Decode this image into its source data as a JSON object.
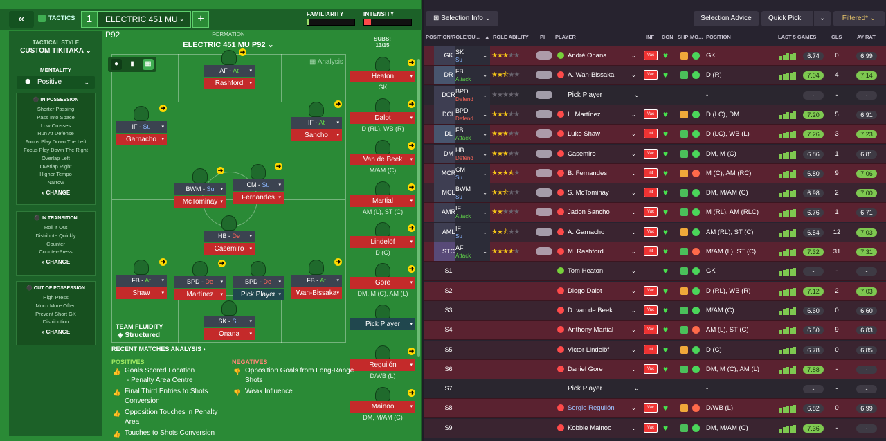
{
  "topbar": {
    "tactics_label": "TACTICS",
    "number": "1",
    "tactic_name": "ELECTRIC 451 MU P92",
    "familiarity_label": "FAMILIARITY",
    "intensity_label": "INTENSITY",
    "familiarity_value": 0.05,
    "intensity_value": 0.15
  },
  "side": {
    "style_label": "TACTICAL STYLE",
    "style_value": "CUSTOM TIKITAKA",
    "mentality_label": "MENTALITY",
    "mentality_value": "Positive",
    "in_possession": {
      "title": "IN POSSESSION",
      "items": [
        "Shorter Passing",
        "Pass Into Space",
        "Low Crosses",
        "Run At Defense",
        "Focus Play Down The Left",
        "Focus Play Down The Right",
        "Overlap Left",
        "Overlap Right",
        "Higher Tempo",
        "Narrow"
      ],
      "change": "CHANGE"
    },
    "in_transition": {
      "title": "IN TRANSITION",
      "items": [
        "Roll It Out",
        "Distribute Quickly",
        "Counter",
        "Counter-Press"
      ],
      "change": "CHANGE"
    },
    "out_of_possession": {
      "title": "OUT OF POSSESSION",
      "items": [
        "High Press",
        "Much More Often",
        "Prevent Short GK",
        "Distribution"
      ],
      "change": "CHANGE"
    }
  },
  "formation": {
    "label": "FORMATION",
    "name": "ELECTRIC 451 MU P92",
    "analysis": "Analysis",
    "subs_label": "SUBS:",
    "subs_count": "13/15"
  },
  "players": {
    "af": {
      "role": "AF -",
      "duty": "At",
      "name": "Rashford"
    },
    "if_l": {
      "role": "IF -",
      "duty": "Su",
      "name": "Garnacho"
    },
    "if_r": {
      "role": "IF -",
      "duty": "At",
      "name": "Sancho"
    },
    "bwm": {
      "role": "BWM -",
      "duty": "Su",
      "name": "McTominay"
    },
    "cm": {
      "role": "CM -",
      "duty": "Su",
      "name": "Fernandes"
    },
    "hb": {
      "role": "HB -",
      "duty": "De",
      "name": "Casemiro"
    },
    "fb_l": {
      "role": "FB -",
      "duty": "At",
      "name": "Shaw"
    },
    "bpd_l": {
      "role": "BPD -",
      "duty": "De",
      "name": "Martínez"
    },
    "bpd_r": {
      "role": "BPD -",
      "duty": "De",
      "name": "Pick Player"
    },
    "fb_r": {
      "role": "FB -",
      "duty": "At",
      "name": "Wan-Bissaka"
    },
    "sk": {
      "role": "SK -",
      "duty": "Su",
      "name": "Onana"
    }
  },
  "team_fluidity": {
    "label": "TEAM FLUIDITY",
    "value": "Structured"
  },
  "subs": [
    {
      "name": "Heaton",
      "pos": "GK"
    },
    {
      "name": "Dalot",
      "pos": "D (RL), WB (R)"
    },
    {
      "name": "Van de Beek",
      "pos": "M/AM (C)"
    },
    {
      "name": "Martial",
      "pos": "AM (L), ST (C)"
    },
    {
      "name": "Lindelöf",
      "pos": "D (C)"
    },
    {
      "name": "Gore",
      "pos": "DM, M (C), AM (L)"
    },
    {
      "name": "Pick Player",
      "pos": ""
    },
    {
      "name": "Reguilón",
      "pos": "D/WB (L)"
    },
    {
      "name": "Mainoo",
      "pos": "DM, M/AM (C)"
    }
  ],
  "analysis": {
    "title": "RECENT MATCHES ANALYSIS ›",
    "positives_label": "POSITIVES",
    "negatives_label": "NEGATIVES",
    "positives": [
      "Goals Scored Location",
      "- Penalty Area Centre",
      "Final Third Entries to Shots",
      "Conversion",
      "Opposition Touches in Penalty",
      "Area",
      "Touches to Shots Conversion"
    ],
    "negatives": [
      "Opposition Goals from Long-Range",
      "Shots",
      "Weak Influence"
    ]
  },
  "right": {
    "selection_info": "Selection Info",
    "selection_advice": "Selection Advice",
    "quick_pick": "Quick Pick",
    "filtered": "Filtered*",
    "headers": {
      "position": "POSITION/ROLE/DU...",
      "role_ability": "ROLE ABILITY",
      "pi": "PI",
      "player": "PLAYER",
      "inf": "INF",
      "con": "CON",
      "shp": "SHP",
      "mo": "MO...",
      "pos": "POSITION",
      "last5": "LAST 5 GAMES",
      "gls": "GLS",
      "avrat": "AV RAT"
    },
    "pick_player": "Pick Player",
    "rows": [
      {
        "slot": "GK",
        "role": "SK",
        "duty": "Su",
        "stars": 3,
        "name": "André Onana",
        "inf": "Vac",
        "pos": "GK",
        "rat": "6.74",
        "gls": "0",
        "avr": "6.99"
      },
      {
        "slot": "DR",
        "role": "FB",
        "duty": "Attack",
        "stars": 2.5,
        "name": "A. Wan-Bissaka",
        "inf": "Vac",
        "pos": "D (R)",
        "rat": "7.04",
        "gls": "4",
        "avr": "7.14"
      },
      {
        "slot": "DCR",
        "role": "BPD",
        "duty": "Defend",
        "stars": 0,
        "name": "",
        "inf": "",
        "pos": "-",
        "rat": "-",
        "gls": "-",
        "avr": "-"
      },
      {
        "slot": "DCL",
        "role": "BPD",
        "duty": "Defend",
        "stars": 3,
        "name": "L. Martínez",
        "inf": "Vac",
        "pos": "D (LC), DM",
        "rat": "7.20",
        "gls": "5",
        "avr": "6.91"
      },
      {
        "slot": "DL",
        "role": "FB",
        "duty": "Attack",
        "stars": 3,
        "name": "Luke Shaw",
        "inf": "Int",
        "pos": "D (LC), WB (L)",
        "rat": "7.26",
        "gls": "3",
        "avr": "7.23"
      },
      {
        "slot": "DM",
        "role": "HB",
        "duty": "Defend",
        "stars": 3,
        "name": "Casemiro",
        "inf": "Vac",
        "pos": "DM, M (C)",
        "rat": "6.86",
        "gls": "1",
        "avr": "6.81"
      },
      {
        "slot": "MCR",
        "role": "CM",
        "duty": "Su",
        "stars": 3.5,
        "name": "B. Fernandes",
        "inf": "Int",
        "pos": "M (C), AM (RC)",
        "rat": "6.80",
        "gls": "9",
        "avr": "7.06"
      },
      {
        "slot": "MCL",
        "role": "BWM",
        "duty": "Su",
        "stars": 2.5,
        "name": "S. McTominay",
        "inf": "Int",
        "pos": "DM, M/AM (C)",
        "rat": "6.98",
        "gls": "2",
        "avr": "7.00"
      },
      {
        "slot": "AMR",
        "role": "IF",
        "duty": "Attack",
        "stars": 2,
        "name": "Jadon Sancho",
        "inf": "Vac",
        "pos": "M (RL), AM (RLC)",
        "rat": "6.76",
        "gls": "1",
        "avr": "6.71"
      },
      {
        "slot": "AML",
        "role": "IF",
        "duty": "Su",
        "stars": 2.5,
        "name": "A. Garnacho",
        "inf": "Vac",
        "pos": "AM (RL), ST (C)",
        "rat": "6.54",
        "gls": "12",
        "avr": "7.03"
      },
      {
        "slot": "STC",
        "role": "AF",
        "duty": "Attack",
        "stars": 4,
        "name": "M. Rashford",
        "inf": "Int",
        "pos": "M/AM (L), ST (C)",
        "rat": "7.32",
        "gls": "31",
        "avr": "7.31"
      },
      {
        "slot": "S1",
        "role": "",
        "duty": "",
        "stars": -1,
        "name": "Tom Heaton",
        "inf": "",
        "pos": "GK",
        "rat": "-",
        "gls": "-",
        "avr": "-"
      },
      {
        "slot": "S2",
        "role": "",
        "duty": "",
        "stars": -1,
        "name": "Diogo Dalot",
        "inf": "Vac",
        "pos": "D (RL), WB (R)",
        "rat": "7.12",
        "gls": "2",
        "avr": "7.03"
      },
      {
        "slot": "S3",
        "role": "",
        "duty": "",
        "stars": -1,
        "name": "D. van de Beek",
        "inf": "Vac",
        "pos": "M/AM (C)",
        "rat": "6.60",
        "gls": "0",
        "avr": "6.60"
      },
      {
        "slot": "S4",
        "role": "",
        "duty": "",
        "stars": -1,
        "name": "Anthony Martial",
        "inf": "Vac",
        "pos": "AM (L), ST (C)",
        "rat": "6.50",
        "gls": "9",
        "avr": "6.83"
      },
      {
        "slot": "S5",
        "role": "",
        "duty": "",
        "stars": -1,
        "name": "Victor Lindelöf",
        "inf": "Int",
        "pos": "D (C)",
        "rat": "6.78",
        "gls": "0",
        "avr": "6.85"
      },
      {
        "slot": "S6",
        "role": "",
        "duty": "",
        "stars": -1,
        "name": "Daniel Gore",
        "inf": "Vac",
        "pos": "DM, M (C), AM (L)",
        "rat": "7.88",
        "gls": "-",
        "avr": "-"
      },
      {
        "slot": "S7",
        "role": "",
        "duty": "",
        "stars": -1,
        "name": "",
        "inf": "",
        "pos": "-",
        "rat": "-",
        "gls": "-",
        "avr": "-"
      },
      {
        "slot": "S8",
        "role": "",
        "duty": "",
        "stars": -1,
        "name": "Sergio Reguilón",
        "inf": "Vac",
        "pos": "D/WB (L)",
        "rat": "6.82",
        "gls": "0",
        "avr": "6.99"
      },
      {
        "slot": "S9",
        "role": "",
        "duty": "",
        "stars": -1,
        "name": "Kobbie Mainoo",
        "inf": "Vac",
        "pos": "DM, M/AM (C)",
        "rat": "7.36",
        "gls": "-",
        "avr": "-"
      }
    ]
  }
}
